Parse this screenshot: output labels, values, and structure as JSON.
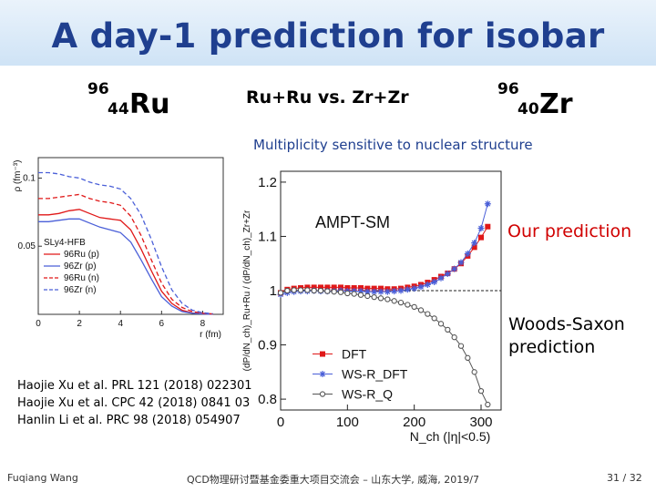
{
  "slide": {
    "title": "A day-1 prediction for isobar",
    "ru": {
      "mass": "96",
      "z": "44",
      "sym": "Ru"
    },
    "mid": "Ru+Ru vs. Zr+Zr",
    "zr": {
      "mass": "96",
      "z": "40",
      "sym": "Zr"
    },
    "subtitle": "Multiplicity sensitive to nuclear structure",
    "our_prediction": "Our prediction",
    "ws_prediction_1": "Woods-Saxon",
    "ws_prediction_2": "prediction",
    "refs": [
      "Haojie Xu et al. PRL 121 (2018) 022301",
      "Haojie Xu et al. CPC 42 (2018) 0841 03",
      "Hanlin Li et al. PRC 98 (2018) 054907"
    ],
    "footer_left": "Fuqiang Wang",
    "footer_center": "QCD物理研讨暨基金委重大项目交流会 – 山东大学, 威海, 2019/7",
    "footer_right": "31 / 32"
  },
  "colors": {
    "title": "#1f3f8f",
    "red": "#e01818",
    "blue": "#4a5fd8",
    "gray": "#555555"
  },
  "chart_data": [
    {
      "type": "line",
      "title": "",
      "xlabel": "r (fm)",
      "ylabel": "ρ (fm⁻³)",
      "xlim": [
        0,
        9
      ],
      "ylim": [
        0,
        0.115
      ],
      "xticks": [
        0,
        2,
        4,
        6,
        8
      ],
      "yticks": [
        0.05,
        0.1
      ],
      "legend_title": "SLy4-HFB",
      "legend_position": "bottom-left",
      "series": [
        {
          "name": "96Ru (p)",
          "color": "#e01818",
          "dash": "solid",
          "x": [
            0,
            0.5,
            1,
            1.5,
            2,
            2.5,
            3,
            3.5,
            4,
            4.5,
            5,
            5.5,
            6,
            6.5,
            7,
            7.5,
            8,
            8.5
          ],
          "y": [
            0.073,
            0.073,
            0.074,
            0.076,
            0.077,
            0.074,
            0.071,
            0.07,
            0.069,
            0.062,
            0.048,
            0.032,
            0.017,
            0.008,
            0.003,
            0.001,
            0.0005,
            0.0002
          ]
        },
        {
          "name": "96Zr (p)",
          "color": "#4a5fd8",
          "dash": "solid",
          "x": [
            0,
            0.5,
            1,
            1.5,
            2,
            2.5,
            3,
            3.5,
            4,
            4.5,
            5,
            5.5,
            6,
            6.5,
            7,
            7.5,
            8,
            8.5
          ],
          "y": [
            0.068,
            0.068,
            0.069,
            0.07,
            0.07,
            0.067,
            0.064,
            0.062,
            0.06,
            0.053,
            0.04,
            0.026,
            0.013,
            0.006,
            0.002,
            0.0008,
            0.0003,
            0.0001
          ]
        },
        {
          "name": "96Ru (n)",
          "color": "#e01818",
          "dash": "dash",
          "x": [
            0,
            0.5,
            1,
            1.5,
            2,
            2.5,
            3,
            3.5,
            4,
            4.5,
            5,
            5.5,
            6,
            6.5,
            7,
            7.5,
            8,
            8.5
          ],
          "y": [
            0.085,
            0.085,
            0.086,
            0.087,
            0.088,
            0.085,
            0.083,
            0.082,
            0.08,
            0.072,
            0.058,
            0.04,
            0.023,
            0.011,
            0.005,
            0.002,
            0.0008,
            0.0003
          ]
        },
        {
          "name": "96Zr (n)",
          "color": "#4a5fd8",
          "dash": "dash",
          "x": [
            0,
            0.5,
            1,
            1.5,
            2,
            2.5,
            3,
            3.5,
            4,
            4.5,
            5,
            5.5,
            6,
            6.5,
            7,
            7.5,
            8,
            8.5
          ],
          "y": [
            0.104,
            0.104,
            0.103,
            0.101,
            0.1,
            0.097,
            0.095,
            0.094,
            0.092,
            0.085,
            0.073,
            0.055,
            0.035,
            0.018,
            0.008,
            0.003,
            0.0012,
            0.0004
          ]
        }
      ]
    },
    {
      "type": "line",
      "title": "AMPT-SM",
      "xlabel": "N_ch (|η|<0.5)",
      "ylabel": "(dP/dN_ch)_Ru+Ru / (dP/dN_ch)_Zr+Zr",
      "xlim": [
        0,
        330
      ],
      "ylim": [
        0.78,
        1.22
      ],
      "xticks": [
        0,
        100,
        200,
        300
      ],
      "yticks": [
        0.8,
        0.9,
        1,
        1.1,
        1.2
      ],
      "reference_line": 1.0,
      "legend_position": "bottom-left",
      "series": [
        {
          "name": "DFT",
          "color": "#e01818",
          "marker": "square",
          "x": [
            0,
            10,
            20,
            30,
            40,
            50,
            60,
            70,
            80,
            90,
            100,
            110,
            120,
            130,
            140,
            150,
            160,
            170,
            180,
            190,
            200,
            210,
            220,
            230,
            240,
            250,
            260,
            270,
            280,
            290,
            300,
            310
          ],
          "y": [
            0.996,
            1.002,
            1.004,
            1.005,
            1.006,
            1.006,
            1.006,
            1.006,
            1.006,
            1.006,
            1.005,
            1.005,
            1.005,
            1.004,
            1.004,
            1.004,
            1.003,
            1.003,
            1.004,
            1.006,
            1.008,
            1.011,
            1.015,
            1.02,
            1.026,
            1.032,
            1.04,
            1.05,
            1.064,
            1.08,
            1.098,
            1.118
          ]
        },
        {
          "name": "WS-R_DFT",
          "color": "#4a5fd8",
          "marker": "star",
          "x": [
            0,
            10,
            20,
            30,
            40,
            50,
            60,
            70,
            80,
            90,
            100,
            110,
            120,
            130,
            140,
            150,
            160,
            170,
            180,
            190,
            200,
            210,
            220,
            230,
            240,
            250,
            260,
            270,
            280,
            290,
            300,
            310
          ],
          "y": [
            0.993,
            0.996,
            0.998,
            0.999,
            0.999,
            1.0,
            0.999,
            0.999,
            0.999,
            1.0,
            0.999,
            0.999,
            0.999,
            0.998,
            0.998,
            0.998,
            0.998,
            0.999,
            1.0,
            1.002,
            1.004,
            1.007,
            1.011,
            1.016,
            1.023,
            1.031,
            1.04,
            1.052,
            1.068,
            1.088,
            1.115,
            1.16
          ]
        },
        {
          "name": "WS-R_Q",
          "color": "#555555",
          "marker": "circle",
          "x": [
            0,
            10,
            20,
            30,
            40,
            50,
            60,
            70,
            80,
            90,
            100,
            110,
            120,
            130,
            140,
            150,
            160,
            170,
            180,
            190,
            200,
            210,
            220,
            230,
            240,
            250,
            260,
            270,
            280,
            290,
            300,
            310
          ],
          "y": [
            0.996,
            1.0,
            1.001,
            1.001,
            1.001,
            1.0,
            1.0,
            0.999,
            0.998,
            0.997,
            0.995,
            0.994,
            0.992,
            0.99,
            0.988,
            0.986,
            0.984,
            0.981,
            0.978,
            0.974,
            0.97,
            0.964,
            0.957,
            0.949,
            0.939,
            0.928,
            0.914,
            0.898,
            0.876,
            0.85,
            0.815,
            0.79
          ]
        }
      ]
    }
  ]
}
